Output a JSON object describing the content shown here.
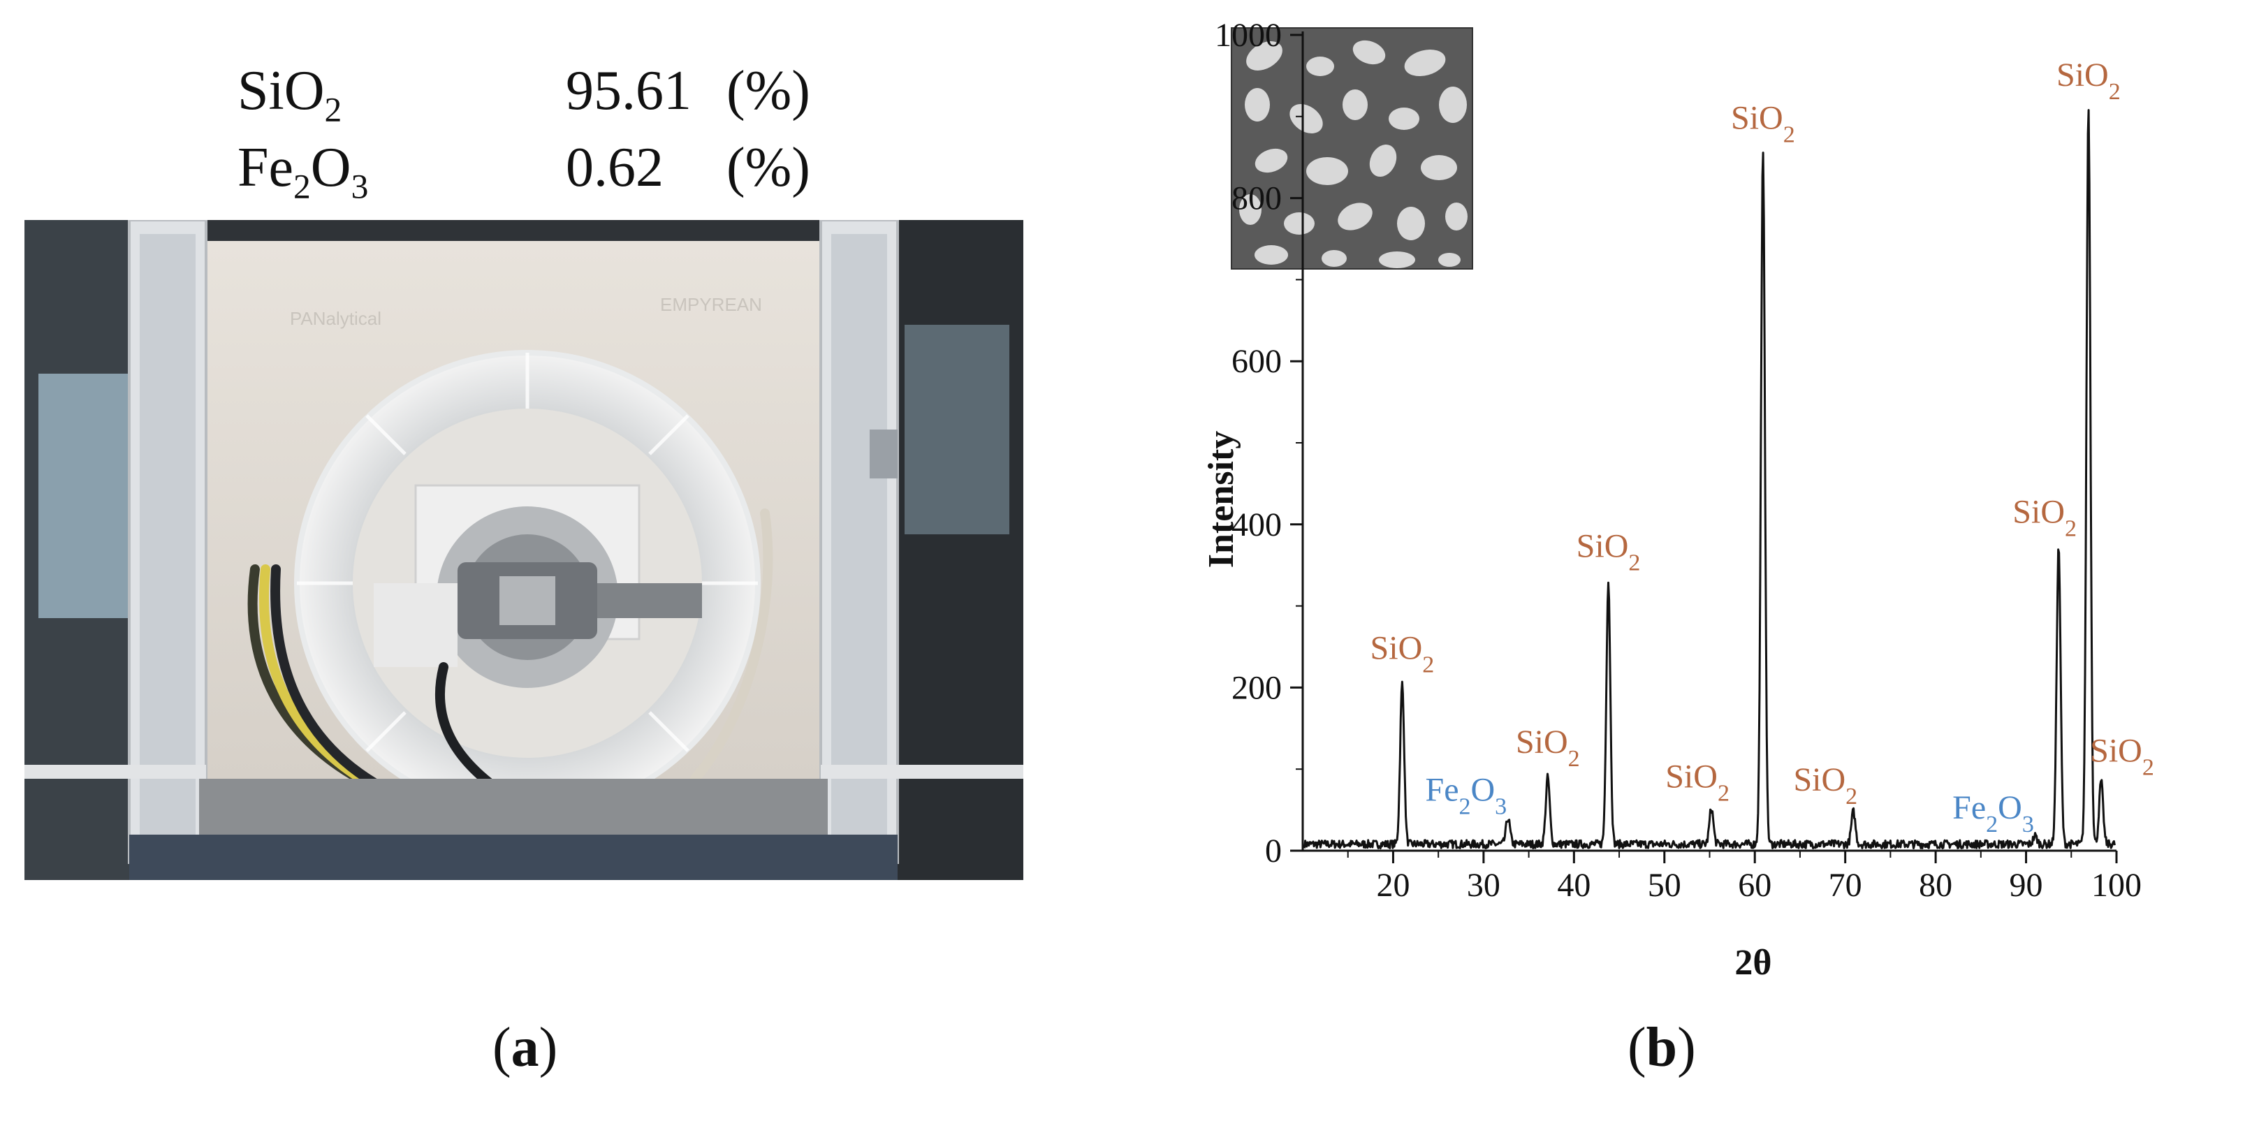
{
  "panel_a": {
    "label": "a",
    "composition": [
      {
        "name": "SiO",
        "sub": "2",
        "value": "95.61",
        "unit": "(%)"
      },
      {
        "name": "Fe",
        "sub": "2",
        "name2": "O",
        "sub2": "3",
        "value": "0.62",
        "unit": "(%)"
      }
    ],
    "photo_brand_left": "PANalytical",
    "photo_brand_right": "EMPYREAN"
  },
  "panel_b": {
    "label": "b"
  },
  "colors": {
    "sio2": "#b5673f",
    "fe2o3": "#4a86c6",
    "line": "#111111"
  },
  "chart_data": {
    "type": "line",
    "title": "",
    "xlabel": "2θ",
    "ylabel": "Intensity",
    "xlim": [
      10,
      100
    ],
    "ylim": [
      0,
      1000
    ],
    "x_ticks": [
      20,
      30,
      40,
      50,
      60,
      70,
      80,
      90,
      100
    ],
    "y_ticks": [
      0,
      200,
      400,
      600,
      800,
      1000
    ],
    "baseline": 8,
    "peaks": [
      {
        "x": 21,
        "y": 205,
        "label": "SiO2",
        "phase": "sio2"
      },
      {
        "x": 32.7,
        "y": 40,
        "label": "Fe2O3",
        "phase": "fe2o3"
      },
      {
        "x": 37.1,
        "y": 90,
        "label": "SiO2",
        "phase": "sio2"
      },
      {
        "x": 43.8,
        "y": 330,
        "label": "SiO2",
        "phase": "sio2"
      },
      {
        "x": 55.2,
        "y": 52,
        "label": "SiO2",
        "phase": "sio2"
      },
      {
        "x": 60.9,
        "y": 855,
        "label": "SiO2",
        "phase": "sio2"
      },
      {
        "x": 70.9,
        "y": 48,
        "label": "SiO2",
        "phase": "sio2"
      },
      {
        "x": 91,
        "y": 18,
        "label": "Fe2O3",
        "phase": "fe2o3"
      },
      {
        "x": 93.6,
        "y": 372,
        "label": "SiO2",
        "phase": "sio2"
      },
      {
        "x": 96.9,
        "y": 912,
        "label": "SiO2",
        "phase": "sio2"
      },
      {
        "x": 98.3,
        "y": 85,
        "label": "SiO2",
        "phase": "sio2"
      }
    ]
  }
}
